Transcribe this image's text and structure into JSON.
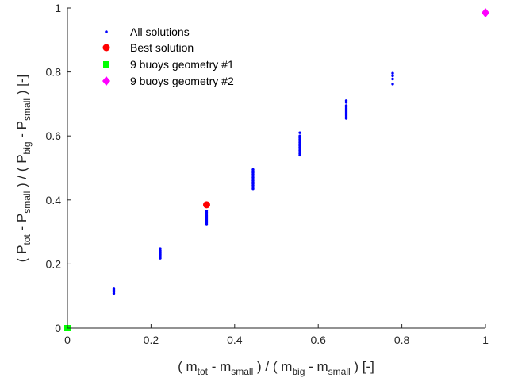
{
  "chart_data": {
    "type": "scatter",
    "xlim": [
      0,
      1
    ],
    "ylim": [
      0,
      1
    ],
    "x_ticks": [
      0,
      0.2,
      0.4,
      0.6,
      0.8,
      1
    ],
    "y_ticks": [
      0,
      0.2,
      0.4,
      0.6,
      0.8,
      1
    ],
    "x_tick_labels": [
      "0",
      "0.2",
      "0.4",
      "0.6",
      "0.8",
      "1"
    ],
    "y_tick_labels": [
      "0",
      "0.2",
      "0.4",
      "0.6",
      "0.8",
      "1"
    ],
    "xlabel": {
      "prefix": "( m",
      "sub1": "tot",
      "mid1": " - m",
      "sub2": "small",
      "mid2": " ) / ( m",
      "sub3": "big",
      "mid3": " - m",
      "sub4": "small",
      "suffix": " ) [-]"
    },
    "ylabel": {
      "prefix": "( P",
      "sub1": "tot",
      "mid1": " - P",
      "sub2": "small",
      "mid2": " ) / ( P",
      "sub3": "big",
      "mid3": " - P",
      "sub4": "small",
      "suffix": " ) [-]"
    },
    "grid": false,
    "legend_position": "top-left",
    "series": [
      {
        "name": "All solutions",
        "marker": "dot",
        "color": "#0000ff",
        "x": [
          0.111,
          0.111,
          0.111,
          0.111,
          0.222,
          0.222,
          0.222,
          0.222,
          0.222,
          0.222,
          0.222,
          0.222,
          0.333,
          0.333,
          0.333,
          0.333,
          0.333,
          0.333,
          0.333,
          0.333,
          0.333,
          0.444,
          0.444,
          0.444,
          0.444,
          0.444,
          0.444,
          0.444,
          0.444,
          0.444,
          0.444,
          0.444,
          0.444,
          0.444,
          0.556,
          0.556,
          0.556,
          0.556,
          0.556,
          0.556,
          0.556,
          0.556,
          0.556,
          0.556,
          0.556,
          0.556,
          0.556,
          0.556,
          0.667,
          0.667,
          0.667,
          0.667,
          0.667,
          0.667,
          0.667,
          0.667,
          0.667,
          0.667,
          0.667,
          0.778,
          0.778,
          0.778,
          0.778
        ],
        "y": [
          0.108,
          0.113,
          0.118,
          0.122,
          0.218,
          0.222,
          0.226,
          0.23,
          0.234,
          0.238,
          0.242,
          0.248,
          0.325,
          0.33,
          0.335,
          0.34,
          0.345,
          0.35,
          0.355,
          0.36,
          0.365,
          0.435,
          0.44,
          0.445,
          0.45,
          0.455,
          0.46,
          0.465,
          0.47,
          0.475,
          0.48,
          0.485,
          0.49,
          0.495,
          0.54,
          0.545,
          0.55,
          0.555,
          0.56,
          0.565,
          0.57,
          0.575,
          0.58,
          0.585,
          0.59,
          0.595,
          0.6,
          0.61,
          0.655,
          0.66,
          0.665,
          0.67,
          0.675,
          0.68,
          0.685,
          0.69,
          0.695,
          0.705,
          0.71,
          0.762,
          0.778,
          0.788,
          0.796
        ]
      },
      {
        "name": "Best solution",
        "marker": "circle",
        "color": "#ff0000",
        "x": [
          0.333
        ],
        "y": [
          0.385
        ]
      },
      {
        "name": "9 buoys geometry #1",
        "marker": "square",
        "color": "#00ff00",
        "x": [
          0
        ],
        "y": [
          0
        ]
      },
      {
        "name": "9 buoys geometry #2",
        "marker": "diamond",
        "color": "#ff00ff",
        "x": [
          1
        ],
        "y": [
          0.985
        ]
      }
    ]
  }
}
